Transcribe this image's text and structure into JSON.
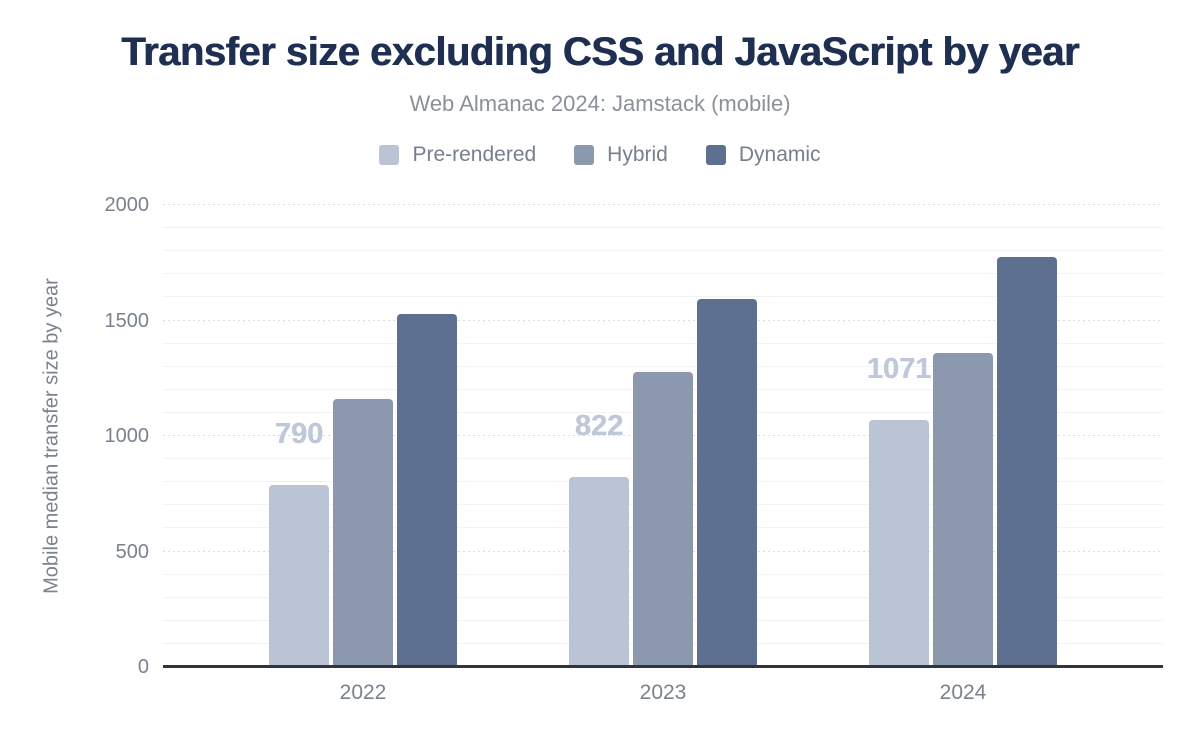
{
  "chart_data": {
    "type": "bar",
    "title": "Transfer size excluding CSS and JavaScript by year",
    "subtitle": "Web Almanac 2024: Jamstack (mobile)",
    "ylabel": "Mobile median transfer size by year",
    "xlabel": "",
    "categories": [
      "2022",
      "2023",
      "2024"
    ],
    "series": [
      {
        "name": "Pre-rendered",
        "color": "#bbc4d4",
        "values": [
          790,
          822,
          1071
        ],
        "value_labels": [
          "790",
          "822",
          "1071"
        ]
      },
      {
        "name": "Hybrid",
        "color": "#8c98ae",
        "values": [
          1160,
          1275,
          1360
        ]
      },
      {
        "name": "Dynamic",
        "color": "#5e7090",
        "values": [
          1530,
          1595,
          1775
        ]
      }
    ],
    "ylim": [
      0,
      2000
    ],
    "yticks": [
      0,
      500,
      1000,
      1500,
      2000
    ],
    "minor_tick_step": 100,
    "major_tick_step": 500,
    "grid": "horizontal",
    "legend_position": "top"
  },
  "colors": {
    "title": "#1e2f51",
    "subtitle": "#8b9099",
    "axis_text": "#7a828e",
    "legend_text": "#75808f",
    "value_label": "#bec8da",
    "axis_line": "#31363e",
    "grid_major": "#d6d9de",
    "grid_minor": "#f2f3f5",
    "background": "#ffffff"
  }
}
